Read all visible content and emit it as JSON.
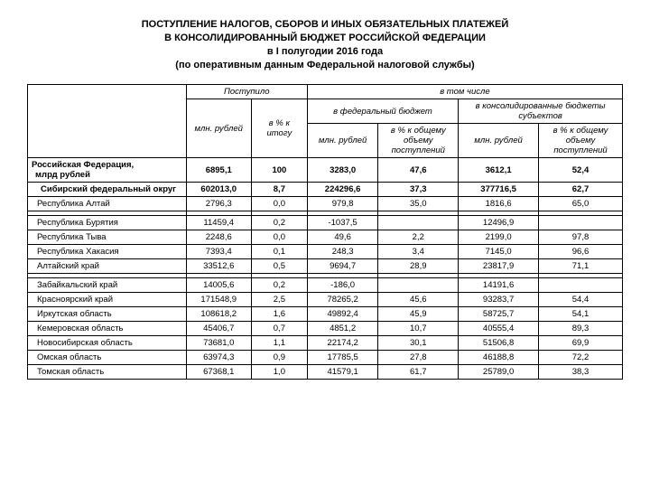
{
  "title": {
    "line1": "ПОСТУПЛЕНИЕ НАЛОГОВ, СБОРОВ И ИНЫХ ОБЯЗАТЕЛЬНЫХ ПЛАТЕЖЕЙ",
    "line2": "В КОНСОЛИДИРОВАННЫЙ БЮДЖЕТ РОССИЙСКОЙ ФЕДЕРАЦИИ",
    "line3": "в I полугодии 2016 года",
    "line4": "(по оперативным данным Федеральной налоговой службы)"
  },
  "head": {
    "received": "Поступило",
    "including": "в том числе",
    "mln_rub": "млн. рублей",
    "pct_total": "в % к итогу",
    "fed_budget": "в федеральный бюджет",
    "cons_budgets": "в консолидированные бюджеты субъектов",
    "pct_vol": "в % к общему объему поступлений"
  },
  "rows": [
    {
      "name": "Российская Федерация,",
      "sub": "млрд рублей",
      "c1": "6895,1",
      "c2": "100",
      "c3": "3283,0",
      "c4": "47,6",
      "c5": "3612,1",
      "c6": "52,4",
      "bold": true
    },
    {
      "name": "Сибирский федеральный округ",
      "indent": 1,
      "c1": "602013,0",
      "c2": "8,7",
      "c3": "224296,6",
      "c4": "37,3",
      "c5": "377716,5",
      "c6": "62,7",
      "bold": true
    },
    {
      "name": "Республика Алтай",
      "indent": 2,
      "c1": "2796,3",
      "c2": "0,0",
      "c3": "979,8",
      "c4": "35,0",
      "c5": "1816,6",
      "c6": "65,0"
    },
    {
      "spacer": true
    },
    {
      "name": "Республика Бурятия",
      "indent": 2,
      "c1": "11459,4",
      "c2": "0,2",
      "c3": "-1037,5",
      "c4": "",
      "c5": "12496,9",
      "c6": ""
    },
    {
      "name": "Республика Тыва",
      "indent": 2,
      "c1": "2248,6",
      "c2": "0,0",
      "c3": "49,6",
      "c4": "2,2",
      "c5": "2199,0",
      "c6": "97,8"
    },
    {
      "name": "Республика Хакасия",
      "indent": 2,
      "c1": "7393,4",
      "c2": "0,1",
      "c3": "248,3",
      "c4": "3,4",
      "c5": "7145,0",
      "c6": "96,6"
    },
    {
      "name": "Алтайский край",
      "indent": 2,
      "c1": "33512,6",
      "c2": "0,5",
      "c3": "9694,7",
      "c4": "28,9",
      "c5": "23817,9",
      "c6": "71,1"
    },
    {
      "spacer": true
    },
    {
      "name": "Забайкальский край",
      "indent": 2,
      "c1": "14005,6",
      "c2": "0,2",
      "c3": "-186,0",
      "c4": "",
      "c5": "14191,6",
      "c6": ""
    },
    {
      "name": "Красноярский край",
      "indent": 2,
      "c1": "171548,9",
      "c2": "2,5",
      "c3": "78265,2",
      "c4": "45,6",
      "c5": "93283,7",
      "c6": "54,4"
    },
    {
      "name": "Иркутская область",
      "indent": 2,
      "c1": "108618,2",
      "c2": "1,6",
      "c3": "49892,4",
      "c4": "45,9",
      "c5": "58725,7",
      "c6": "54,1"
    },
    {
      "name": "Кемеровская область",
      "indent": 2,
      "c1": "45406,7",
      "c2": "0,7",
      "c3": "4851,2",
      "c4": "10,7",
      "c5": "40555,4",
      "c6": "89,3"
    },
    {
      "name": "Новосибирская область",
      "indent": 2,
      "c1": "73681,0",
      "c2": "1,1",
      "c3": "22174,2",
      "c4": "30,1",
      "c5": "51506,8",
      "c6": "69,9"
    },
    {
      "name": "Омская область",
      "indent": 2,
      "c1": "63974,3",
      "c2": "0,9",
      "c3": "17785,5",
      "c4": "27,8",
      "c5": "46188,8",
      "c6": "72,2"
    },
    {
      "name": "Томская область",
      "indent": 2,
      "c1": "67368,1",
      "c2": "1,0",
      "c3": "41579,1",
      "c4": "61,7",
      "c5": "25789,0",
      "c6": "38,3"
    }
  ]
}
